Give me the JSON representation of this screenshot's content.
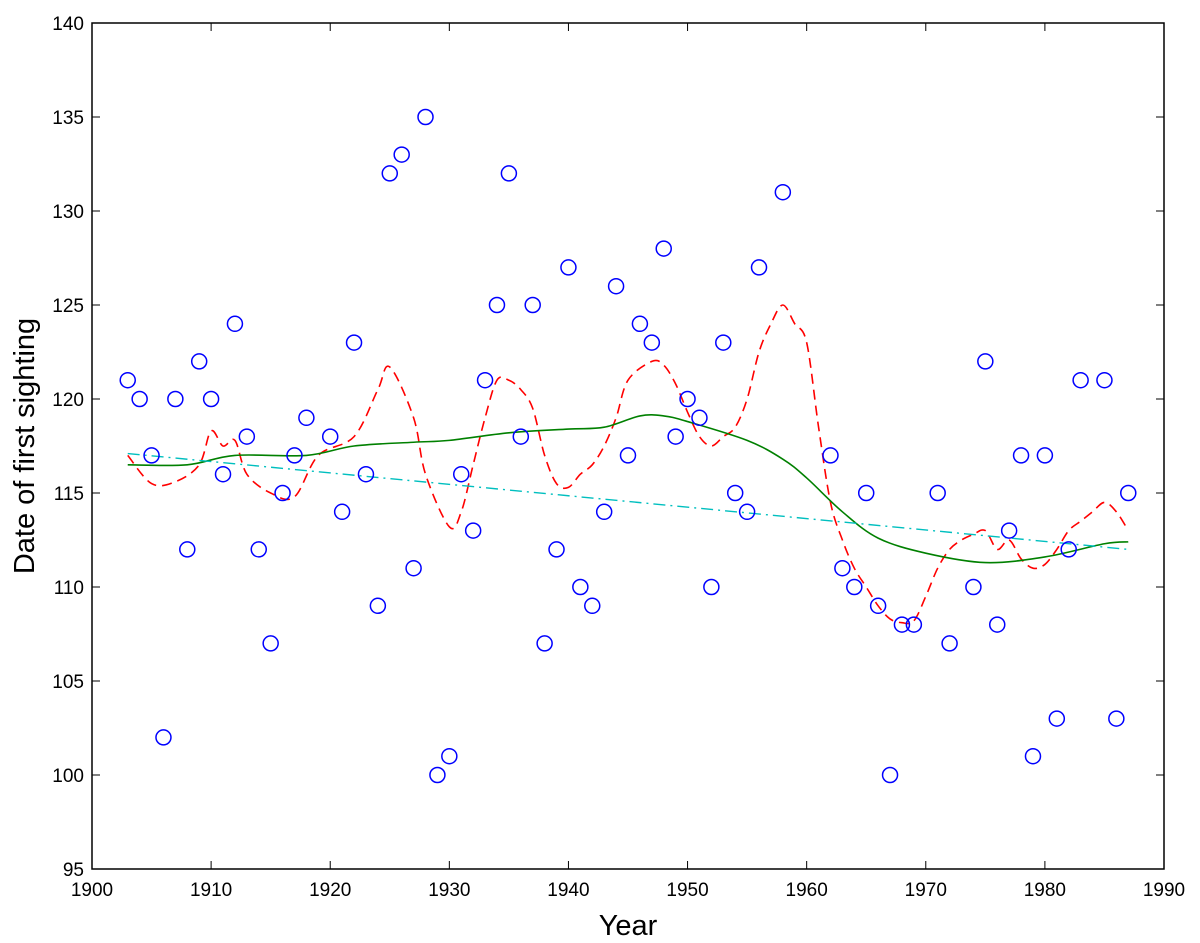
{
  "chart_data": {
    "type": "scatter",
    "title": "",
    "xlabel": "Year",
    "ylabel": "Date of first sighting",
    "xlim": [
      1900,
      1990
    ],
    "ylim": [
      95,
      140
    ],
    "xticks": [
      "1900",
      "1910",
      "1920",
      "1930",
      "1940",
      "1950",
      "1960",
      "1970",
      "1980",
      "1990"
    ],
    "yticks": [
      "95",
      "100",
      "105",
      "110",
      "115",
      "120",
      "125",
      "130",
      "135",
      "140"
    ],
    "grid": false,
    "colors": {
      "points": "#0000ff",
      "red": "#ff0000",
      "green": "#008000",
      "cyan": "#00bfbf"
    },
    "points": {
      "x": [
        1903,
        1904,
        1905,
        1906,
        1907,
        1908,
        1909,
        1910,
        1911,
        1912,
        1913,
        1914,
        1915,
        1916,
        1917,
        1918,
        1920,
        1921,
        1922,
        1923,
        1924,
        1925,
        1926,
        1927,
        1928,
        1929,
        1930,
        1931,
        1932,
        1933,
        1934,
        1935,
        1936,
        1937,
        1938,
        1939,
        1940,
        1941,
        1942,
        1943,
        1944,
        1945,
        1946,
        1947,
        1948,
        1949,
        1950,
        1951,
        1952,
        1953,
        1954,
        1955,
        1956,
        1958,
        1962,
        1963,
        1964,
        1965,
        1966,
        1967,
        1968,
        1969,
        1971,
        1972,
        1974,
        1975,
        1976,
        1977,
        1978,
        1979,
        1980,
        1981,
        1982,
        1983,
        1985,
        1986,
        1987
      ],
      "y": [
        121,
        120,
        117,
        102,
        120,
        112,
        122,
        120,
        116,
        124,
        118,
        112,
        107,
        115,
        117,
        119,
        118,
        114,
        123,
        116,
        109,
        132,
        133,
        111,
        135,
        100,
        101,
        116,
        113,
        121,
        125,
        132,
        118,
        125,
        107,
        112,
        127,
        110,
        109,
        114,
        126,
        117,
        124,
        123,
        128,
        118,
        120,
        119,
        110,
        123,
        115,
        114,
        127,
        131,
        117,
        111,
        110,
        115,
        109,
        100,
        108,
        108,
        115,
        107,
        110,
        122,
        108,
        113,
        117,
        101,
        117,
        103,
        112,
        121,
        121,
        103,
        115
      ]
    },
    "series": [
      {
        "name": "red-dashed-smooth",
        "x": [
          1903,
          1905,
          1907,
          1909,
          1910,
          1911,
          1912,
          1913,
          1915,
          1917,
          1919,
          1922,
          1924,
          1925,
          1927,
          1928,
          1930,
          1931,
          1932,
          1933,
          1934,
          1935,
          1936,
          1937,
          1938,
          1939,
          1940,
          1941,
          1942,
          1943,
          1944,
          1945,
          1947,
          1948,
          1949,
          1950,
          1951,
          1952,
          1953,
          1954,
          1955,
          1956,
          1957,
          1958,
          1959,
          1960,
          1961,
          1962,
          1963,
          1964,
          1965,
          1966,
          1967,
          1968,
          1969,
          1970,
          1971,
          1972,
          1973,
          1974,
          1975,
          1976,
          1977,
          1978,
          1979,
          1980,
          1981,
          1982,
          1983,
          1984,
          1985,
          1986,
          1987
        ],
        "y": [
          117,
          115.5,
          115.6,
          116.5,
          118.3,
          117.5,
          117.8,
          116,
          115,
          114.8,
          117,
          118,
          120.5,
          121.7,
          119,
          116,
          113.2,
          114,
          116.5,
          119,
          121,
          121,
          120.5,
          119.5,
          117,
          115.5,
          115.3,
          116,
          116.5,
          117.5,
          119,
          121,
          122,
          121.8,
          120.8,
          119.3,
          118,
          117.5,
          118,
          118.5,
          120,
          122.5,
          124,
          125,
          124,
          123,
          118.5,
          114.5,
          112.5,
          111,
          110,
          109,
          108.3,
          108.1,
          108.2,
          109.5,
          111,
          112,
          112.5,
          112.8,
          113,
          112,
          112.5,
          111.5,
          111,
          111.2,
          112,
          113,
          113.5,
          114,
          114.5,
          114,
          113
        ]
      },
      {
        "name": "green-solid-smooth",
        "x": [
          1903,
          1908,
          1912,
          1918,
          1922,
          1927,
          1930,
          1935,
          1940,
          1943,
          1946,
          1948,
          1950,
          1955,
          1958,
          1960,
          1963,
          1966,
          1970,
          1975,
          1980,
          1985,
          1987
        ],
        "y": [
          116.5,
          116.5,
          117,
          117,
          117.5,
          117.7,
          117.8,
          118.2,
          118.4,
          118.5,
          119.1,
          119.1,
          118.8,
          117.8,
          116.8,
          115.8,
          114,
          112.6,
          111.8,
          111.3,
          111.6,
          112.3,
          112.4
        ]
      },
      {
        "name": "cyan-dashdot-linear",
        "x": [
          1903,
          1987
        ],
        "y": [
          117.1,
          112
        ]
      }
    ]
  }
}
